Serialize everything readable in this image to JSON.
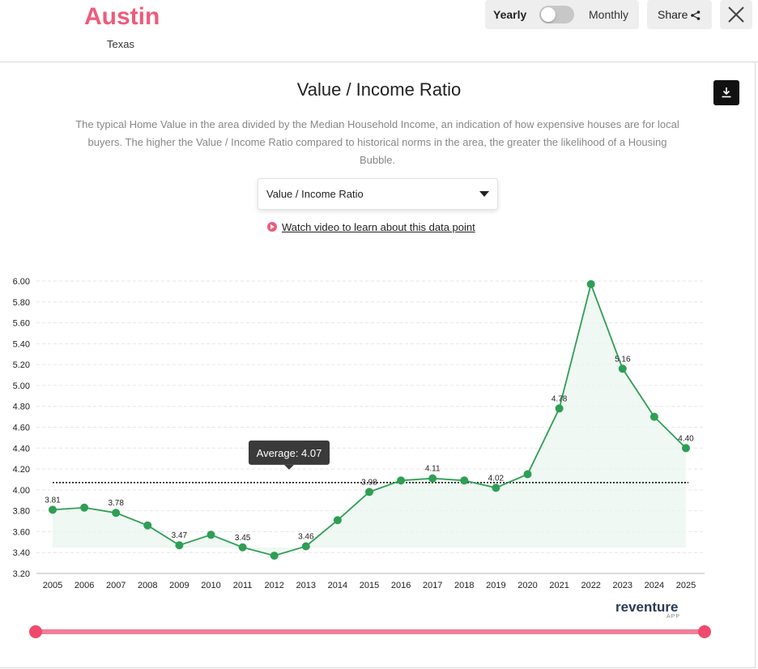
{
  "header": {
    "city": "Austin",
    "state": "Texas",
    "toggle": {
      "yearly_label": "Yearly",
      "monthly_label": "Monthly",
      "selected": "Yearly"
    },
    "share_label": "Share",
    "icons": {
      "share": "share-icon",
      "close": "close-icon",
      "download": "download-icon",
      "play": "play-icon",
      "dropdown": "caret-down-icon"
    }
  },
  "panel": {
    "title": "Value / Income Ratio",
    "description": "The typical Home Value in the area divided by the Median Household Income, an indication of how expensive houses are for local buyers. The higher the Value / Income Ratio compared to historical norms in the area, the greater the likelihood of a Housing Bubble.",
    "select_value": "Value / Income Ratio",
    "video_link": "Watch video to learn about this data point"
  },
  "brand": {
    "name": "reventure",
    "sub": "APP"
  },
  "colors": {
    "accent": "#ef5b7a",
    "line": "#2e9e55",
    "slider": "#f07f97"
  },
  "chart_data": {
    "type": "line",
    "title": "",
    "xlabel": "",
    "ylabel": "",
    "ylim": [
      3.2,
      6.0
    ],
    "yticks": [
      "6.00",
      "5.80",
      "5.60",
      "5.40",
      "5.20",
      "5.00",
      "4.80",
      "4.60",
      "4.40",
      "4.20",
      "4.00",
      "3.80",
      "3.60",
      "3.40",
      "3.20"
    ],
    "categories": [
      "2005",
      "2006",
      "2007",
      "2008",
      "2009",
      "2010",
      "2011",
      "2012",
      "2013",
      "2014",
      "2015",
      "2016",
      "2017",
      "2018",
      "2019",
      "2020",
      "2021",
      "2022",
      "2023",
      "2024",
      "2025"
    ],
    "series": [
      {
        "values": [
          3.81,
          3.83,
          3.78,
          3.66,
          3.47,
          3.57,
          3.45,
          3.37,
          3.46,
          3.71,
          3.98,
          4.09,
          4.11,
          4.09,
          4.02,
          4.15,
          4.78,
          5.97,
          5.16,
          4.7,
          4.4
        ]
      }
    ],
    "point_labels": [
      {
        "index": 0,
        "text": "3.81"
      },
      {
        "index": 2,
        "text": "3.78"
      },
      {
        "index": 4,
        "text": "3.47"
      },
      {
        "index": 6,
        "text": "3.45"
      },
      {
        "index": 8,
        "text": "3.46"
      },
      {
        "index": 10,
        "text": "3.98"
      },
      {
        "index": 12,
        "text": "4.11"
      },
      {
        "index": 14,
        "text": "4.02"
      },
      {
        "index": 16,
        "text": "4.78"
      },
      {
        "index": 18,
        "text": "5.16"
      },
      {
        "index": 20,
        "text": "4.40"
      }
    ],
    "average": {
      "value": 4.07,
      "label": "Average: 4.07"
    },
    "grid": true,
    "area_fill": true
  }
}
